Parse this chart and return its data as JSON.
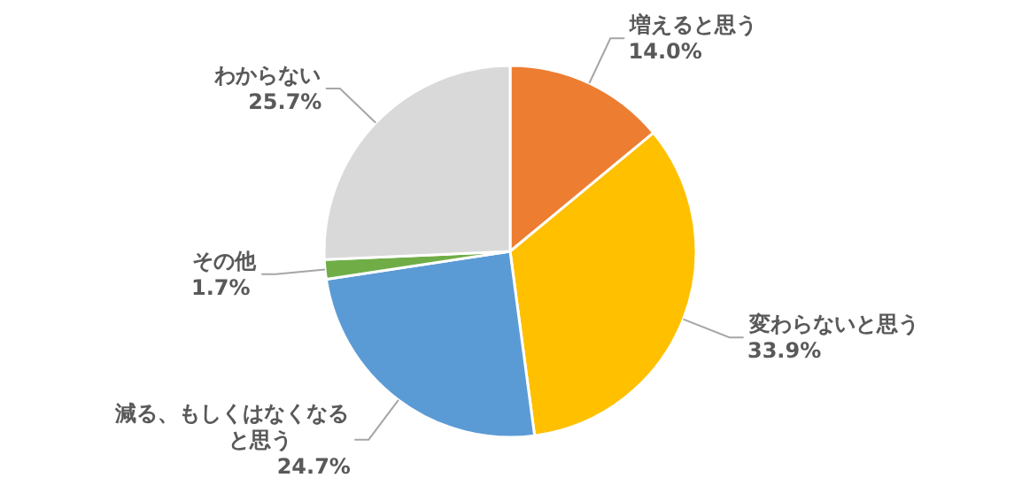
{
  "chart_data": {
    "type": "pie",
    "categories": [
      "増えると思う",
      "変わらないと思う",
      "減る、もしくはなくなると思う",
      "その他",
      "わからない"
    ],
    "values": [
      14.0,
      33.9,
      24.7,
      1.7,
      25.7
    ],
    "colors": [
      "#ed7d31",
      "#ffc000",
      "#5b9bd5",
      "#70ad47",
      "#d9d9d9"
    ],
    "value_labels": [
      "14.0%",
      "33.9%",
      "24.7%",
      "1.7%",
      "25.7%"
    ]
  }
}
